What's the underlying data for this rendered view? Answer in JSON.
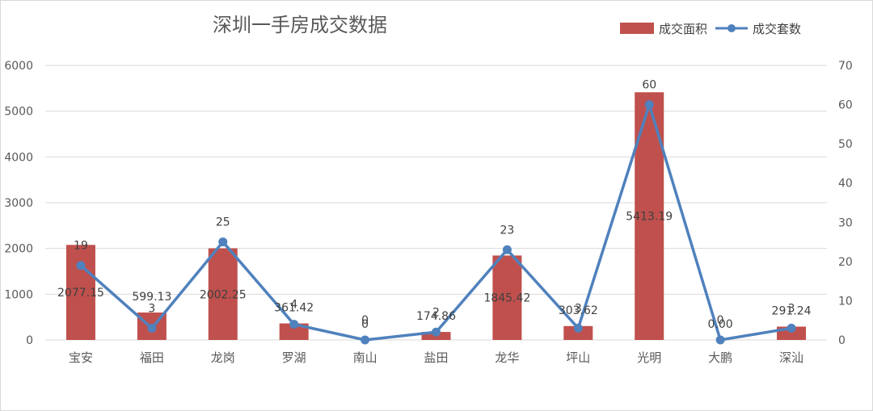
{
  "chart_data": {
    "type": "bar+line",
    "title": "深圳一手房成交数据",
    "categories": [
      "宝安",
      "福田",
      "龙岗",
      "罗湖",
      "南山",
      "盐田",
      "龙华",
      "坪山",
      "光明",
      "大鹏",
      "深汕"
    ],
    "series": [
      {
        "name": "成交面积",
        "type": "bar",
        "axis": "left",
        "color": "#c0504d",
        "values": [
          2077.15,
          599.13,
          2002.25,
          361.42,
          0,
          174.86,
          1845.42,
          303.62,
          5413.19,
          0.0,
          291.24
        ],
        "labels": [
          "2077.15",
          "599.13",
          "2002.25",
          "361.42",
          "0",
          "174.86",
          "1845.42",
          "303.62",
          "5413.19",
          "0.00",
          "291.24"
        ]
      },
      {
        "name": "成交套数",
        "type": "line",
        "axis": "right",
        "color": "#4f81bd",
        "values": [
          19,
          3,
          25,
          4,
          0,
          2,
          23,
          3,
          60,
          0,
          3
        ]
      }
    ],
    "y_left": {
      "min": 0,
      "max": 6000,
      "ticks": [
        0,
        1000,
        2000,
        3000,
        4000,
        5000,
        6000
      ]
    },
    "y_right": {
      "min": 0,
      "max": 70,
      "ticks": [
        0,
        10,
        20,
        30,
        40,
        50,
        60,
        70
      ]
    },
    "grid": true,
    "legend": "top-right"
  }
}
